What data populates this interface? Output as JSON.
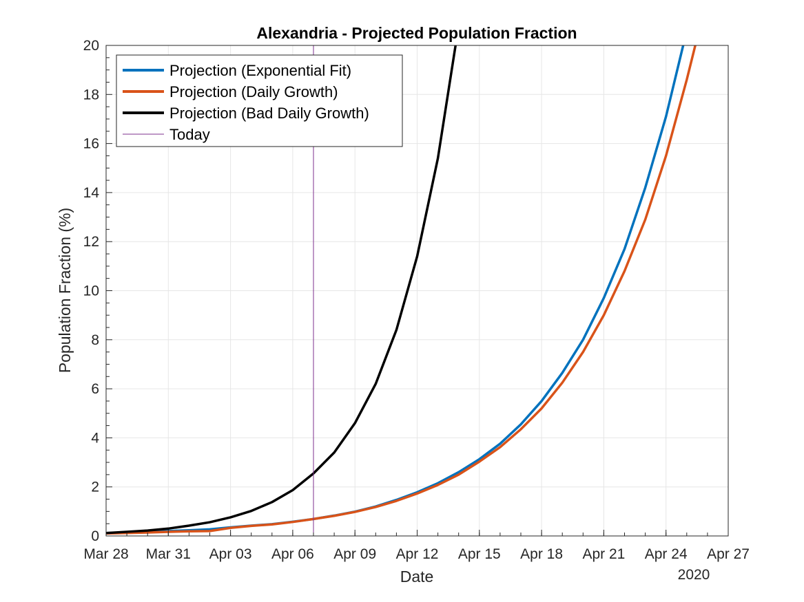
{
  "chart_data": {
    "type": "line",
    "title": "Alexandria - Projected Population Fraction",
    "xlabel": "Date",
    "ylabel": "Population Fraction (%)",
    "year_label": "2020",
    "x_tick_labels": [
      "Mar 28",
      "Mar 31",
      "Apr 03",
      "Apr 06",
      "Apr 09",
      "Apr 12",
      "Apr 15",
      "Apr 18",
      "Apr 21",
      "Apr 24",
      "Apr 27"
    ],
    "x_tick_dates": [
      "2020-03-28",
      "2020-03-31",
      "2020-04-03",
      "2020-04-06",
      "2020-04-09",
      "2020-04-12",
      "2020-04-15",
      "2020-04-18",
      "2020-04-21",
      "2020-04-24",
      "2020-04-27"
    ],
    "y_tick_labels": [
      "0",
      "2",
      "4",
      "6",
      "8",
      "10",
      "12",
      "14",
      "16",
      "18",
      "20"
    ],
    "xlim": [
      "2020-03-28",
      "2020-04-27"
    ],
    "ylim": [
      0,
      20
    ],
    "grid": true,
    "legend_position": "top-left",
    "today": "2020-04-07",
    "series": [
      {
        "name": "Projection (Exponential Fit)",
        "color": "#0072BD",
        "x": [
          "2020-03-28",
          "2020-03-29",
          "2020-03-30",
          "2020-03-31",
          "2020-04-01",
          "2020-04-02",
          "2020-04-03",
          "2020-04-04",
          "2020-04-05",
          "2020-04-06",
          "2020-04-07",
          "2020-04-08",
          "2020-04-09",
          "2020-04-10",
          "2020-04-11",
          "2020-04-12",
          "2020-04-13",
          "2020-04-14",
          "2020-04-15",
          "2020-04-16",
          "2020-04-17",
          "2020-04-18",
          "2020-04-19",
          "2020-04-20",
          "2020-04-21",
          "2020-04-22",
          "2020-04-23",
          "2020-04-24",
          "2020-04-25"
        ],
        "y": [
          0.12,
          0.14,
          0.17,
          0.2,
          0.23,
          0.27,
          0.35,
          0.42,
          0.48,
          0.58,
          0.69,
          0.83,
          0.99,
          1.2,
          1.47,
          1.78,
          2.15,
          2.6,
          3.13,
          3.76,
          4.55,
          5.5,
          6.65,
          8.0,
          9.7,
          11.7,
          14.2,
          17.1,
          20.6
        ]
      },
      {
        "name": "Projection (Daily Growth)",
        "color": "#D95319",
        "x": [
          "2020-03-28",
          "2020-03-29",
          "2020-03-30",
          "2020-03-31",
          "2020-04-01",
          "2020-04-02",
          "2020-04-03",
          "2020-04-04",
          "2020-04-05",
          "2020-04-06",
          "2020-04-07",
          "2020-04-08",
          "2020-04-09",
          "2020-04-10",
          "2020-04-11",
          "2020-04-12",
          "2020-04-13",
          "2020-04-14",
          "2020-04-15",
          "2020-04-16",
          "2020-04-17",
          "2020-04-18",
          "2020-04-19",
          "2020-04-20",
          "2020-04-21",
          "2020-04-22",
          "2020-04-23",
          "2020-04-24",
          "2020-04-25",
          "2020-04-26"
        ],
        "y": [
          0.1,
          0.12,
          0.14,
          0.17,
          0.19,
          0.2,
          0.33,
          0.41,
          0.47,
          0.57,
          0.69,
          0.82,
          0.98,
          1.18,
          1.43,
          1.73,
          2.08,
          2.5,
          3.03,
          3.62,
          4.35,
          5.2,
          6.25,
          7.5,
          9.0,
          10.8,
          12.9,
          15.5,
          18.6,
          22.0
        ]
      },
      {
        "name": "Projection (Bad Daily Growth)",
        "color": "#000000",
        "x": [
          "2020-03-28",
          "2020-03-29",
          "2020-03-30",
          "2020-03-31",
          "2020-04-01",
          "2020-04-02",
          "2020-04-03",
          "2020-04-04",
          "2020-04-05",
          "2020-04-06",
          "2020-04-07",
          "2020-04-08",
          "2020-04-09",
          "2020-04-10",
          "2020-04-11",
          "2020-04-12",
          "2020-04-13",
          "2020-04-14"
        ],
        "y": [
          0.12,
          0.17,
          0.22,
          0.3,
          0.42,
          0.56,
          0.76,
          1.02,
          1.38,
          1.87,
          2.55,
          3.4,
          4.6,
          6.2,
          8.4,
          11.4,
          15.4,
          20.8
        ]
      },
      {
        "name": "Today",
        "color": "#7E2F8E",
        "type": "vline"
      }
    ]
  }
}
